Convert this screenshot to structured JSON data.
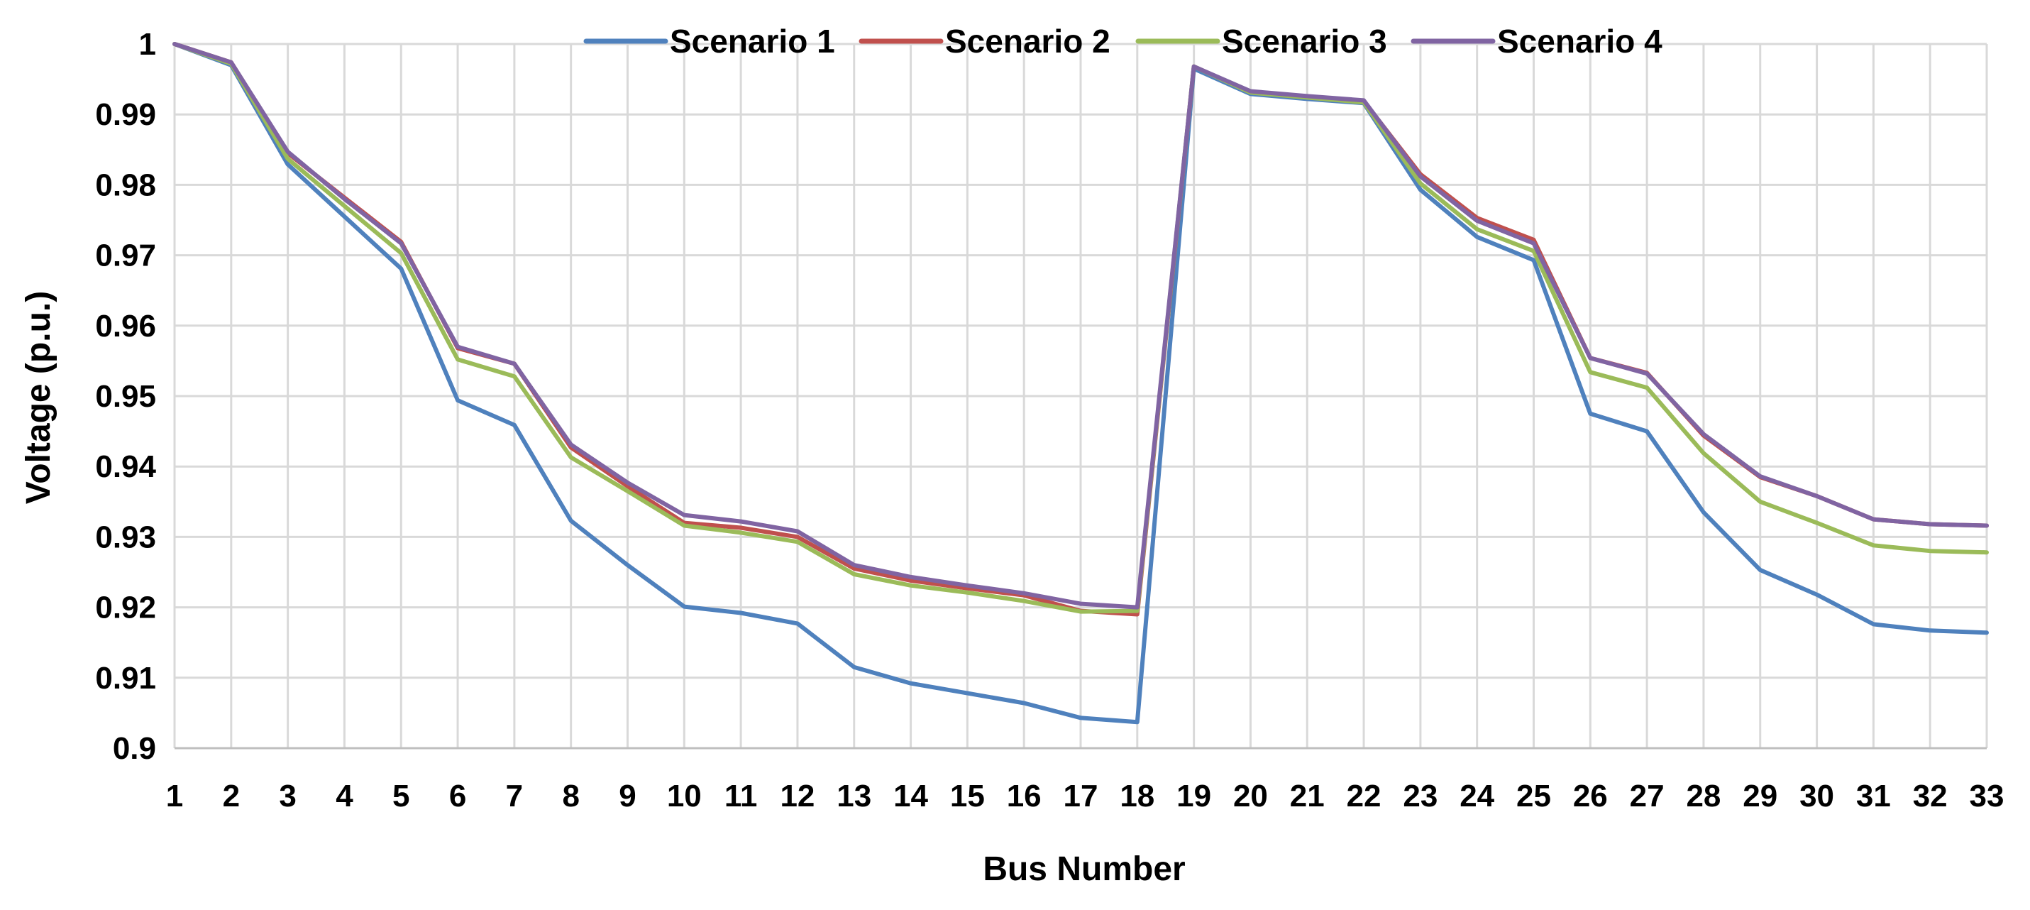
{
  "chart_data": {
    "type": "line",
    "xlabel": "Bus Number",
    "ylabel": "Voltage (p.u.)",
    "ylim": [
      0.9,
      1.0
    ],
    "yticks": [
      0.9,
      0.91,
      0.92,
      0.93,
      0.94,
      0.95,
      0.96,
      0.97,
      0.98,
      0.99,
      1
    ],
    "ytick_labels": [
      "0.9",
      "0.91",
      "0.92",
      "0.93",
      "0.94",
      "0.95",
      "0.96",
      "0.97",
      "0.98",
      "0.99",
      "1"
    ],
    "x": [
      1,
      2,
      3,
      4,
      5,
      6,
      7,
      8,
      9,
      10,
      11,
      12,
      13,
      14,
      15,
      16,
      17,
      18,
      19,
      20,
      21,
      22,
      23,
      24,
      25,
      26,
      27,
      28,
      29,
      30,
      31,
      32,
      33
    ],
    "x_labels": [
      "1",
      "2",
      "3",
      "4",
      "5",
      "6",
      "7",
      "8",
      "9",
      "10",
      "11",
      "12",
      "13",
      "14",
      "15",
      "16",
      "17",
      "18",
      "19",
      "20",
      "21",
      "22",
      "23",
      "24",
      "25",
      "26",
      "27",
      "28",
      "29",
      "30",
      "31",
      "32",
      "33"
    ],
    "grid": true,
    "legend_position": "top-center",
    "series": [
      {
        "name": "Scenario 1",
        "color": "#4f81bd",
        "values": [
          1.0,
          0.997,
          0.9829,
          0.9755,
          0.9681,
          0.9494,
          0.9459,
          0.9323,
          0.926,
          0.9201,
          0.9192,
          0.9177,
          0.9115,
          0.9092,
          0.9078,
          0.9064,
          0.9043,
          0.9037,
          0.9965,
          0.9929,
          0.9922,
          0.9916,
          0.9793,
          0.9726,
          0.9693,
          0.9475,
          0.945,
          0.9335,
          0.9253,
          0.9218,
          0.9176,
          0.9167,
          0.9164
        ]
      },
      {
        "name": "Scenario 2",
        "color": "#c0504d",
        "values": [
          1.0,
          0.9974,
          0.9845,
          0.9782,
          0.9719,
          0.9568,
          0.9546,
          0.9427,
          0.9372,
          0.932,
          0.9313,
          0.93,
          0.9255,
          0.9238,
          0.9227,
          0.9217,
          0.9195,
          0.919,
          0.9968,
          0.9932,
          0.9925,
          0.9919,
          0.9815,
          0.9753,
          0.9722,
          0.9554,
          0.9533,
          0.9444,
          0.9385,
          0.9358,
          0.9325,
          0.9318,
          0.9316
        ]
      },
      {
        "name": "Scenario 3",
        "color": "#9bbb59",
        "values": [
          1.0,
          0.9972,
          0.9837,
          0.977,
          0.9703,
          0.9552,
          0.9528,
          0.9413,
          0.9365,
          0.9316,
          0.9306,
          0.9293,
          0.9247,
          0.9231,
          0.9221,
          0.9209,
          0.9194,
          0.9195,
          0.9968,
          0.9931,
          0.9924,
          0.9917,
          0.9802,
          0.9737,
          0.9706,
          0.9534,
          0.9512,
          0.9419,
          0.935,
          0.932,
          0.9288,
          0.928,
          0.9278
        ]
      },
      {
        "name": "Scenario 4",
        "color": "#8064a2",
        "values": [
          1.0,
          0.9974,
          0.9847,
          0.978,
          0.9717,
          0.957,
          0.9546,
          0.9431,
          0.9377,
          0.9331,
          0.9322,
          0.9308,
          0.926,
          0.9243,
          0.9231,
          0.922,
          0.9205,
          0.92,
          0.9968,
          0.9933,
          0.9926,
          0.992,
          0.9812,
          0.9749,
          0.9717,
          0.9554,
          0.9532,
          0.9446,
          0.9386,
          0.9358,
          0.9325,
          0.9318,
          0.9316
        ]
      }
    ]
  }
}
